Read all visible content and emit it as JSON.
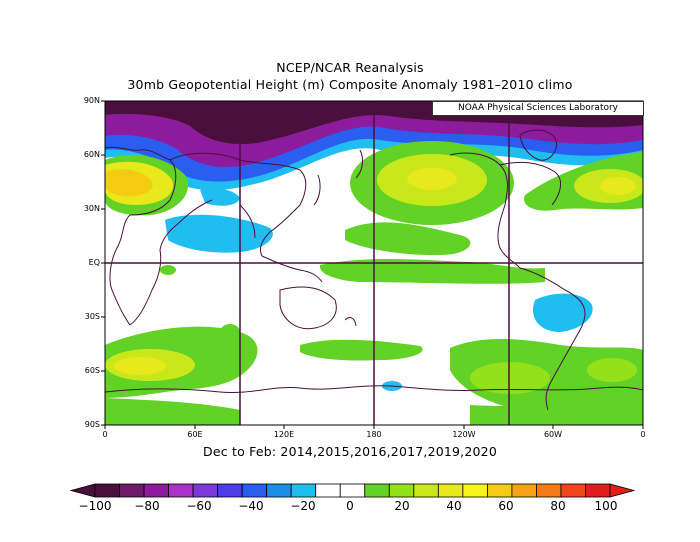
{
  "title_line1": "NCEP/NCAR Reanalysis",
  "title_line2": "30mb Geopotential Height (m) Composite Anomaly 1981–2010 climo",
  "credit": "NOAA Physical Sciences Laboratory",
  "subtitle": "Dec to Feb: 2014,2015,2016,2017,2019,2020",
  "lat_labels": [
    "90N",
    "60N",
    "30N",
    "EQ",
    "30S",
    "60S",
    "90S"
  ],
  "lon_labels": [
    "0",
    "60E",
    "120E",
    "180",
    "120W",
    "60W",
    "0"
  ],
  "colorbar": {
    "labels": [
      "−100",
      "−80",
      "−60",
      "−40",
      "−20",
      "0",
      "20",
      "40",
      "60",
      "80",
      "100"
    ],
    "colors": [
      "#4a0f3c",
      "#6e1a6a",
      "#8c1c9c",
      "#a832c8",
      "#7a3ad8",
      "#4a3ce6",
      "#2a5ef0",
      "#1c8ee6",
      "#20bef0",
      "#ffffff",
      "#ffffff",
      "#62d226",
      "#94e01a",
      "#c8e81c",
      "#e8e81a",
      "#f5f519",
      "#f5cc14",
      "#f5a214",
      "#f57a14",
      "#f2461a",
      "#e01e1e"
    ]
  },
  "chart_data": {
    "type": "heatmap",
    "title": "NCEP/NCAR Reanalysis",
    "subtitle": "30mb Geopotential Height (m) Composite Anomaly 1981–2010 climo",
    "xlabel": "Dec to Feb: 2014,2015,2016,2017,2019,2020",
    "x_ticks": [
      "0",
      "60E",
      "120E",
      "180",
      "120W",
      "60W",
      "0"
    ],
    "y_ticks": [
      "90N",
      "60N",
      "30N",
      "EQ",
      "30S",
      "60S",
      "90S"
    ],
    "xlim": [
      0,
      360
    ],
    "ylim": [
      -90,
      90
    ],
    "color_scale": [
      -100,
      100
    ],
    "colorbar_ticks": [
      -100,
      -80,
      -60,
      -40,
      -20,
      0,
      20,
      40,
      60,
      80,
      100
    ],
    "features": [
      {
        "region": "Arctic / high northern latitudes",
        "anomaly": -80
      },
      {
        "region": "North Pacific",
        "anomaly": 40
      },
      {
        "region": "Europe",
        "anomaly": 50
      },
      {
        "region": "North Atlantic",
        "anomaly": 40
      },
      {
        "region": "South Atlantic / Africa mid-latitudes",
        "anomaly": 40
      },
      {
        "region": "Tropical Indian Ocean",
        "anomaly": -15
      },
      {
        "region": "South America subtropics",
        "anomaly": -15
      }
    ]
  }
}
